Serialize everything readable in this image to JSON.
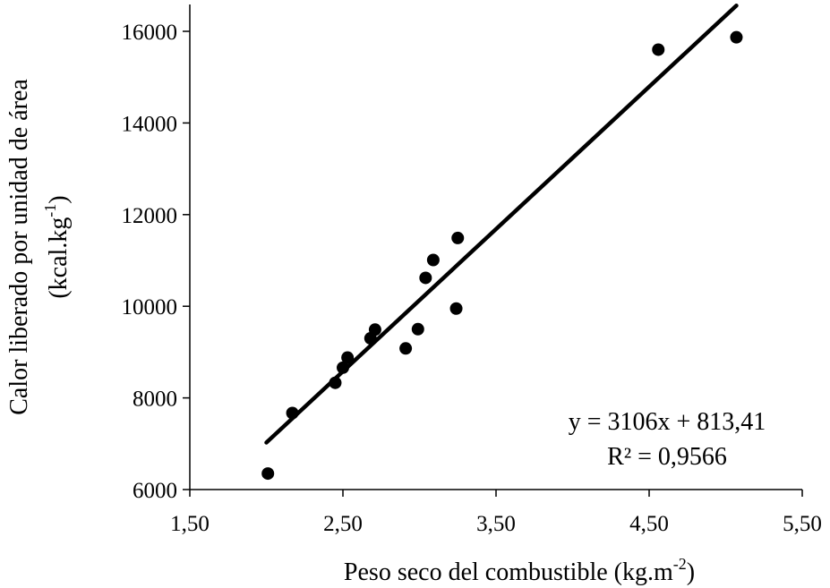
{
  "chart_data": {
    "type": "scatter",
    "xlabel": "Peso seco del combustible (kg.m",
    "xlabel_sup": "-2",
    "xlabel_end": ")",
    "ylabel_line1": "Calor liberado por unidad de área",
    "ylabel_line2": "(kcal.kg",
    "ylabel_line2_sup": "-1",
    "ylabel_line2_end": ")",
    "xlim": [
      1.5,
      5.5
    ],
    "ylim": [
      6000,
      16000
    ],
    "x_ticks": [
      1.5,
      2.5,
      3.5,
      4.5,
      5.5
    ],
    "x_tick_labels": [
      "1,50",
      "2,50",
      "3,50",
      "4,50",
      "5,50"
    ],
    "y_ticks": [
      6000,
      8000,
      10000,
      12000,
      14000,
      16000
    ],
    "y_tick_labels": [
      "6000",
      "8000",
      "10000",
      "12000",
      "14000",
      "16000"
    ],
    "grid": false,
    "series": [
      {
        "points": [
          {
            "x": 2.01,
            "y": 6350
          },
          {
            "x": 2.17,
            "y": 7670
          },
          {
            "x": 2.45,
            "y": 8330
          },
          {
            "x": 2.5,
            "y": 8660
          },
          {
            "x": 2.53,
            "y": 8880
          },
          {
            "x": 2.68,
            "y": 9300
          },
          {
            "x": 2.71,
            "y": 9490
          },
          {
            "x": 2.91,
            "y": 9080
          },
          {
            "x": 2.99,
            "y": 9500
          },
          {
            "x": 3.04,
            "y": 10620
          },
          {
            "x": 3.09,
            "y": 11010
          },
          {
            "x": 3.24,
            "y": 9950
          },
          {
            "x": 3.25,
            "y": 11490
          },
          {
            "x": 4.56,
            "y": 15600
          },
          {
            "x": 5.07,
            "y": 15870
          }
        ]
      }
    ],
    "trendline": {
      "slope": 3106,
      "intercept": 813.41,
      "x_range": [
        2.0,
        5.07
      ]
    },
    "annotations": [
      "y = 3106x + 813,41",
      "R² = 0,9566"
    ]
  }
}
